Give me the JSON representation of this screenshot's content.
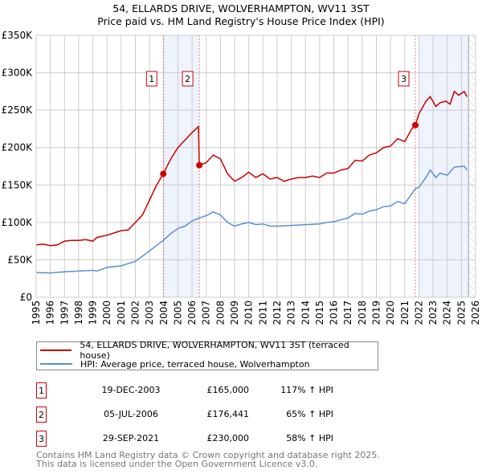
{
  "chart_data": {
    "type": "line",
    "title": "54, ELLARDS DRIVE, WOLVERHAMPTON, WV11 3ST",
    "subtitle": "Price paid vs. HM Land Registry's House Price Index (HPI)",
    "xlim": [
      1995,
      2026
    ],
    "ylim": [
      0,
      350000
    ],
    "x_ticks": [
      "1995",
      "1996",
      "1997",
      "1998",
      "1999",
      "2000",
      "2001",
      "2002",
      "2003",
      "2004",
      "2005",
      "2006",
      "2007",
      "2008",
      "2009",
      "2010",
      "2011",
      "2012",
      "2013",
      "2014",
      "2015",
      "2016",
      "2017",
      "2018",
      "2019",
      "2020",
      "2021",
      "2022",
      "2023",
      "2024",
      "2025",
      "2026"
    ],
    "y_ticks": [
      {
        "v": 0,
        "label": "£0"
      },
      {
        "v": 50000,
        "label": "£50K"
      },
      {
        "v": 100000,
        "label": "£100K"
      },
      {
        "v": 150000,
        "label": "£150K"
      },
      {
        "v": 200000,
        "label": "£200K"
      },
      {
        "v": 250000,
        "label": "£250K"
      },
      {
        "v": 300000,
        "label": "£300K"
      },
      {
        "v": 350000,
        "label": "£350K"
      }
    ],
    "grid": true,
    "shaded_ranges": [
      [
        2003.97,
        2006.51
      ],
      [
        2022.0,
        2025.5
      ]
    ],
    "hatched_from": 2025.5,
    "series": [
      {
        "name": "54, ELLARDS DRIVE, WOLVERHAMPTON, WV11 3ST (terraced house)",
        "color": "#cc0000",
        "x": [
          1995,
          1995.5,
          1996,
          1996.5,
          1997,
          1997.5,
          1998,
          1998.5,
          1999,
          1999.3,
          2000,
          2000.5,
          2001,
          2001.5,
          2002,
          2002.5,
          2003,
          2003.5,
          2003.97,
          2004.5,
          2005,
          2005.5,
          2006,
          2006.45,
          2006.51,
          2007,
          2007.5,
          2008,
          2008.5,
          2009,
          2009.5,
          2010,
          2010.5,
          2011,
          2011.5,
          2012,
          2012.5,
          2013,
          2013.5,
          2014,
          2014.5,
          2015,
          2015.5,
          2016,
          2016.5,
          2017,
          2017.5,
          2018,
          2018.5,
          2019,
          2019.5,
          2020,
          2020.5,
          2021,
          2021.5,
          2021.75,
          2022,
          2022.5,
          2022.8,
          2023.2,
          2023.5,
          2023.9,
          2024.2,
          2024.5,
          2024.8,
          2025.2,
          2025.4
        ],
        "y": [
          70000,
          71000,
          69000,
          70000,
          75000,
          76000,
          76000,
          77000,
          75000,
          80000,
          83000,
          86000,
          89000,
          90000,
          100000,
          110000,
          130000,
          150000,
          165000,
          185000,
          200000,
          210000,
          220000,
          228000,
          176441,
          180000,
          190000,
          185000,
          165000,
          155000,
          160000,
          167000,
          160000,
          165000,
          158000,
          160000,
          155000,
          158000,
          160000,
          160000,
          162000,
          160000,
          166000,
          166000,
          170000,
          172000,
          183000,
          182000,
          190000,
          193000,
          200000,
          202000,
          212000,
          208000,
          225000,
          230000,
          245000,
          262000,
          268000,
          255000,
          260000,
          262000,
          258000,
          275000,
          270000,
          275000,
          268000
        ]
      },
      {
        "name": "HPI: Average price, terraced house, Wolverhampton",
        "color": "#5b8fd6",
        "x": [
          1995,
          1996,
          1997,
          1998,
          1999,
          1999.3,
          2000,
          2001,
          2002,
          2003,
          2003.97,
          2004.5,
          2005,
          2005.5,
          2006,
          2006.5,
          2007,
          2007.5,
          2008,
          2008.5,
          2009,
          2009.5,
          2010,
          2010.5,
          2011,
          2011.5,
          2012,
          2013,
          2014,
          2015,
          2015.5,
          2016,
          2017,
          2017.5,
          2018,
          2018.5,
          2019,
          2019.5,
          2020,
          2020.5,
          2021,
          2021.75,
          2022,
          2022.5,
          2022.8,
          2023.2,
          2023.5,
          2024,
          2024.5,
          2025.2,
          2025.4
        ],
        "y": [
          33000,
          32500,
          34000,
          35000,
          36000,
          35000,
          40000,
          42000,
          48000,
          62000,
          76000,
          85000,
          92000,
          95000,
          102000,
          106000,
          109000,
          114000,
          110000,
          100000,
          95000,
          98000,
          100000,
          97000,
          98000,
          95000,
          95000,
          96000,
          97000,
          98000,
          100000,
          101000,
          106000,
          112000,
          111000,
          115000,
          117000,
          121000,
          122000,
          128000,
          125000,
          145000,
          147000,
          160000,
          170000,
          160000,
          166000,
          163000,
          174000,
          175000,
          170000
        ]
      }
    ],
    "sales": [
      {
        "label": "1",
        "x": 2003.97,
        "y": 165000,
        "date": "19-DEC-2003",
        "price": "£165,000",
        "hpi": "117% ↑ HPI"
      },
      {
        "label": "2",
        "x": 2006.51,
        "y": 176441,
        "date": "05-JUL-2006",
        "price": "£176,441",
        "hpi": "65% ↑ HPI"
      },
      {
        "label": "3",
        "x": 2021.75,
        "y": 230000,
        "date": "29-SEP-2021",
        "price": "£230,000",
        "hpi": "58% ↑ HPI"
      }
    ]
  },
  "footer": {
    "line1": "Contains HM Land Registry data © Crown copyright and database right 2025.",
    "line2": "This data is licensed under the Open Government Licence v3.0."
  }
}
